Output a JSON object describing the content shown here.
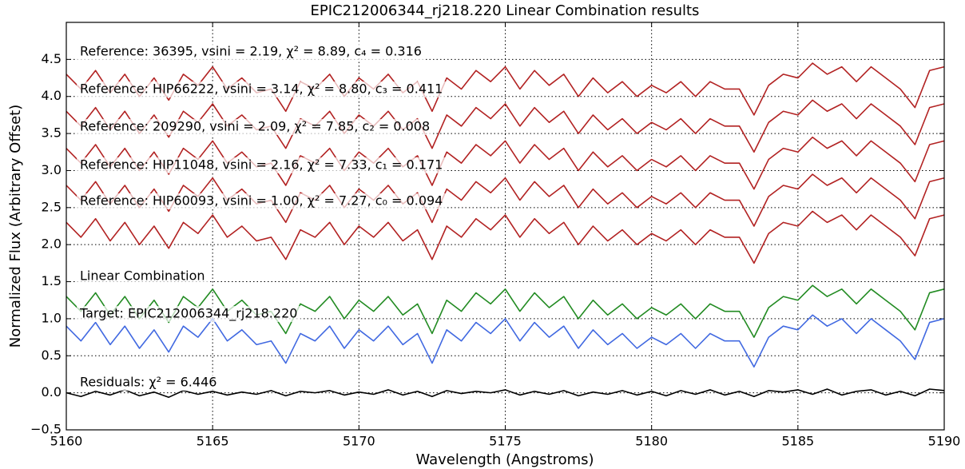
{
  "chart_data": {
    "type": "line",
    "title": "EPIC212006344_rj218.220 Linear Combination results",
    "xlabel": "Wavelength (Angstroms)",
    "ylabel": "Normalized Flux (Arbitrary Offset)",
    "xlim": [
      5160,
      5190
    ],
    "xticks": [
      5160,
      5165,
      5170,
      5175,
      5180,
      5185,
      5190
    ],
    "ylim": [
      -0.5,
      5.0
    ],
    "yticks": [
      {
        "value": -0.5,
        "label": "−0.5"
      },
      {
        "value": 0,
        "label": "0.0"
      },
      0.5,
      {
        "value": 1,
        "label": "1.0"
      },
      1.5,
      {
        "value": 2,
        "label": "2.0"
      },
      2.5,
      {
        "value": 3,
        "label": "3.0"
      },
      3.5,
      {
        "value": 4,
        "label": "4.0"
      },
      4.5
    ],
    "grid": true,
    "x": [
      5160,
      5160.5,
      5161,
      5161.5,
      5162,
      5162.5,
      5163,
      5163.5,
      5164,
      5164.5,
      5165,
      5165.5,
      5166,
      5166.5,
      5167,
      5167.5,
      5168,
      5168.5,
      5169,
      5169.5,
      5170,
      5170.5,
      5171,
      5171.5,
      5172,
      5172.5,
      5173,
      5173.5,
      5174,
      5174.5,
      5175,
      5175.5,
      5176,
      5176.5,
      5177,
      5177.5,
      5178,
      5178.5,
      5179,
      5179.5,
      5180,
      5180.5,
      5181,
      5181.5,
      5182,
      5182.5,
      5183,
      5183.5,
      5184,
      5184.5,
      5185,
      5185.5,
      5186,
      5186.5,
      5187,
      5187.5,
      5188,
      5188.5,
      5189,
      5189.5,
      5190
    ],
    "series": [
      {
        "name": "Reference: 36395, vsini = 2.19, χ² = 8.89, c₄ = 0.316",
        "color": "#b22222",
        "values": [
          4.3,
          4.1,
          4.35,
          4.05,
          4.3,
          4.0,
          4.25,
          3.95,
          4.3,
          4.15,
          4.4,
          4.1,
          4.25,
          4.05,
          4.1,
          3.8,
          4.2,
          4.1,
          4.3,
          4.0,
          4.25,
          4.1,
          4.3,
          4.05,
          4.2,
          3.8,
          4.25,
          4.1,
          4.35,
          4.2,
          4.4,
          4.1,
          4.35,
          4.15,
          4.3,
          4.0,
          4.25,
          4.05,
          4.2,
          4.0,
          4.15,
          4.05,
          4.2,
          4.0,
          4.2,
          4.1,
          4.1,
          3.75,
          4.15,
          4.3,
          4.25,
          4.45,
          4.3,
          4.4,
          4.2,
          4.4,
          4.25,
          4.1,
          3.85,
          4.35,
          4.4
        ]
      },
      {
        "name": "Reference: HIP66222, vsini = 3.14, χ² = 8.80, c₃ = 0.411",
        "color": "#b22222",
        "values": [
          3.8,
          3.6,
          3.85,
          3.55,
          3.8,
          3.5,
          3.75,
          3.45,
          3.8,
          3.65,
          3.9,
          3.6,
          3.75,
          3.55,
          3.6,
          3.3,
          3.7,
          3.6,
          3.8,
          3.5,
          3.75,
          3.6,
          3.8,
          3.55,
          3.7,
          3.3,
          3.75,
          3.6,
          3.85,
          3.7,
          3.9,
          3.6,
          3.85,
          3.65,
          3.8,
          3.5,
          3.75,
          3.55,
          3.7,
          3.5,
          3.65,
          3.55,
          3.7,
          3.5,
          3.7,
          3.6,
          3.6,
          3.25,
          3.65,
          3.8,
          3.75,
          3.95,
          3.8,
          3.9,
          3.7,
          3.9,
          3.75,
          3.6,
          3.35,
          3.85,
          3.9
        ]
      },
      {
        "name": "Reference: 209290, vsini = 2.09, χ² = 7.85, c₂ = 0.008",
        "color": "#b22222",
        "values": [
          3.3,
          3.1,
          3.35,
          3.05,
          3.3,
          3.0,
          3.25,
          2.95,
          3.3,
          3.15,
          3.4,
          3.1,
          3.25,
          3.05,
          3.1,
          2.8,
          3.2,
          3.1,
          3.3,
          3.0,
          3.25,
          3.1,
          3.3,
          3.05,
          3.2,
          2.8,
          3.25,
          3.1,
          3.35,
          3.2,
          3.4,
          3.1,
          3.35,
          3.15,
          3.3,
          3.0,
          3.25,
          3.05,
          3.2,
          3.0,
          3.15,
          3.05,
          3.2,
          3.0,
          3.2,
          3.1,
          3.1,
          2.75,
          3.15,
          3.3,
          3.25,
          3.45,
          3.3,
          3.4,
          3.2,
          3.4,
          3.25,
          3.1,
          2.85,
          3.35,
          3.4
        ]
      },
      {
        "name": "Reference: HIP11048, vsini = 2.16, χ² = 7.33, c₁ = 0.171",
        "color": "#b22222",
        "values": [
          2.8,
          2.6,
          2.85,
          2.55,
          2.8,
          2.5,
          2.75,
          2.45,
          2.8,
          2.65,
          2.9,
          2.6,
          2.75,
          2.55,
          2.6,
          2.3,
          2.7,
          2.6,
          2.8,
          2.5,
          2.75,
          2.6,
          2.8,
          2.55,
          2.7,
          2.3,
          2.75,
          2.6,
          2.85,
          2.7,
          2.9,
          2.6,
          2.85,
          2.65,
          2.8,
          2.5,
          2.75,
          2.55,
          2.7,
          2.5,
          2.65,
          2.55,
          2.7,
          2.5,
          2.7,
          2.6,
          2.6,
          2.25,
          2.65,
          2.8,
          2.75,
          2.95,
          2.8,
          2.9,
          2.7,
          2.9,
          2.75,
          2.6,
          2.35,
          2.85,
          2.9
        ]
      },
      {
        "name": "Reference: HIP60093, vsini = 1.00, χ² = 7.27, c₀ = 0.094",
        "color": "#b22222",
        "values": [
          2.3,
          2.1,
          2.35,
          2.05,
          2.3,
          2.0,
          2.25,
          1.95,
          2.3,
          2.15,
          2.4,
          2.1,
          2.25,
          2.05,
          2.1,
          1.8,
          2.2,
          2.1,
          2.3,
          2.0,
          2.25,
          2.1,
          2.3,
          2.05,
          2.2,
          1.8,
          2.25,
          2.1,
          2.35,
          2.2,
          2.4,
          2.1,
          2.35,
          2.15,
          2.3,
          2.0,
          2.25,
          2.05,
          2.2,
          2.0,
          2.15,
          2.05,
          2.2,
          2.0,
          2.2,
          2.1,
          2.1,
          1.75,
          2.15,
          2.3,
          2.25,
          2.45,
          2.3,
          2.4,
          2.2,
          2.4,
          2.25,
          2.1,
          1.85,
          2.35,
          2.4
        ]
      },
      {
        "name": "Linear Combination",
        "color": "#228b22",
        "values": [
          1.3,
          1.1,
          1.35,
          1.05,
          1.3,
          1.0,
          1.25,
          0.95,
          1.3,
          1.15,
          1.4,
          1.1,
          1.25,
          1.05,
          1.1,
          0.8,
          1.2,
          1.1,
          1.3,
          1.0,
          1.25,
          1.1,
          1.3,
          1.05,
          1.2,
          0.8,
          1.25,
          1.1,
          1.35,
          1.2,
          1.4,
          1.1,
          1.35,
          1.15,
          1.3,
          1.0,
          1.25,
          1.05,
          1.2,
          1.0,
          1.15,
          1.05,
          1.2,
          1.0,
          1.2,
          1.1,
          1.1,
          0.75,
          1.15,
          1.3,
          1.25,
          1.45,
          1.3,
          1.4,
          1.2,
          1.4,
          1.25,
          1.1,
          0.85,
          1.35,
          1.4
        ]
      },
      {
        "name": "Target: EPIC212006344_rj218.220",
        "color": "#4169e1",
        "values": [
          0.9,
          0.7,
          0.95,
          0.65,
          0.9,
          0.6,
          0.85,
          0.55,
          0.9,
          0.75,
          1.0,
          0.7,
          0.85,
          0.65,
          0.7,
          0.4,
          0.8,
          0.7,
          0.9,
          0.6,
          0.85,
          0.7,
          0.9,
          0.65,
          0.8,
          0.4,
          0.85,
          0.7,
          0.95,
          0.8,
          1.0,
          0.7,
          0.95,
          0.75,
          0.9,
          0.6,
          0.85,
          0.65,
          0.8,
          0.6,
          0.75,
          0.65,
          0.8,
          0.6,
          0.8,
          0.7,
          0.7,
          0.35,
          0.75,
          0.9,
          0.85,
          1.05,
          0.9,
          1.0,
          0.8,
          1.0,
          0.85,
          0.7,
          0.45,
          0.95,
          1.0
        ]
      },
      {
        "name": "Residuals: χ² = 6.446",
        "color": "#000000",
        "values": [
          0.0,
          -0.05,
          0.02,
          -0.03,
          0.04,
          -0.04,
          0.01,
          -0.06,
          0.03,
          -0.02,
          0.02,
          -0.03,
          0.01,
          -0.02,
          0.03,
          -0.04,
          0.02,
          0.0,
          0.03,
          -0.03,
          0.01,
          -0.02,
          0.04,
          -0.03,
          0.02,
          -0.05,
          0.03,
          -0.01,
          0.02,
          0.0,
          0.04,
          -0.03,
          0.02,
          -0.02,
          0.03,
          -0.04,
          0.01,
          -0.02,
          0.03,
          -0.03,
          0.02,
          -0.04,
          0.03,
          -0.02,
          0.04,
          -0.03,
          0.02,
          -0.05,
          0.03,
          0.01,
          0.04,
          -0.02,
          0.05,
          -0.03,
          0.02,
          0.04,
          -0.03,
          0.02,
          -0.04,
          0.05,
          0.03
        ]
      }
    ]
  }
}
